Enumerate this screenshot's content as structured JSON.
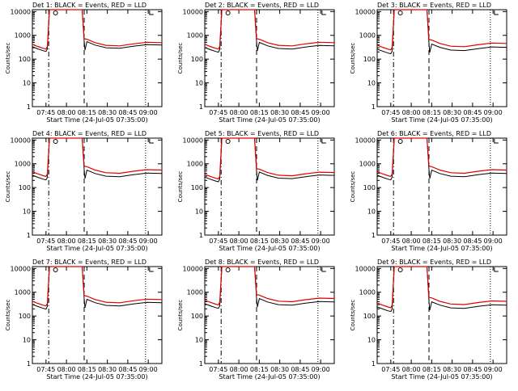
{
  "chart_data": [
    {
      "type": "line",
      "title": "Det 1: BLACK = Events, RED = LLD",
      "xlabel": "Start Time (24-Jul-05 07:35:00)",
      "ylabel": "Counts/sec",
      "x_ticks": [
        "07:45",
        "08:00",
        "08:15",
        "08:30",
        "08:45",
        "09:00"
      ],
      "y_ticks": [
        "1",
        "10",
        "100",
        "1000",
        "10000"
      ],
      "ylim": [
        1,
        12000
      ],
      "log_y": true,
      "series": [
        {
          "name": "Events",
          "color": "#000000"
        },
        {
          "name": "LLD",
          "color": "#e00000"
        }
      ],
      "events_peak": 12000,
      "events_min": 300,
      "lld_level": 380
    },
    {
      "type": "line",
      "title": "Det 2: BLACK = Events, RED = LLD",
      "xlabel": "Start Time (24-Jul-05 07:35:00)",
      "ylabel": "Counts/sec",
      "x_ticks": [
        "07:45",
        "08:00",
        "08:15",
        "08:30",
        "08:45",
        "09:00"
      ],
      "y_ticks": [
        "1",
        "10",
        "100",
        "1000",
        "10000"
      ],
      "ylim": [
        1,
        12000
      ],
      "log_y": true,
      "series": [
        {
          "name": "Events",
          "color": "#000000"
        },
        {
          "name": "LLD",
          "color": "#e00000"
        }
      ],
      "events_peak": 12000,
      "events_min": 280,
      "lld_level": 380
    },
    {
      "type": "line",
      "title": "Det 3: BLACK = Events, RED = LLD",
      "xlabel": "Start Time (24-Jul-05 07:35:00)",
      "ylabel": "Counts/sec",
      "x_ticks": [
        "07:45",
        "08:00",
        "08:15",
        "08:30",
        "08:45",
        "09:00"
      ],
      "y_ticks": [
        "1",
        "10",
        "100",
        "1000",
        "10000"
      ],
      "ylim": [
        1,
        12000
      ],
      "log_y": true,
      "series": [
        {
          "name": "Events",
          "color": "#000000"
        },
        {
          "name": "LLD",
          "color": "#e00000"
        }
      ],
      "events_peak": 12000,
      "events_min": 240,
      "lld_level": 350
    },
    {
      "type": "line",
      "title": "Det 4: BLACK = Events, RED = LLD",
      "xlabel": "Start Time (24-Jul-05 07:35:00)",
      "ylabel": "Counts/sec",
      "x_ticks": [
        "07:45",
        "08:00",
        "08:15",
        "08:30",
        "08:45",
        "09:00"
      ],
      "y_ticks": [
        "1",
        "10",
        "100",
        "1000",
        "10000"
      ],
      "ylim": [
        1,
        12000
      ],
      "log_y": true,
      "series": [
        {
          "name": "Events",
          "color": "#000000"
        },
        {
          "name": "LLD",
          "color": "#e00000"
        }
      ],
      "events_peak": 12000,
      "events_min": 300,
      "lld_level": 420
    },
    {
      "type": "line",
      "title": "Det 5: BLACK = Events, RED = LLD",
      "xlabel": "Start Time (24-Jul-05 07:35:00)",
      "ylabel": "Counts/sec",
      "x_ticks": [
        "07:45",
        "08:00",
        "08:15",
        "08:30",
        "08:45",
        "09:00"
      ],
      "y_ticks": [
        "1",
        "10",
        "100",
        "1000",
        "10000"
      ],
      "ylim": [
        1,
        12000
      ],
      "log_y": true,
      "series": [
        {
          "name": "Events",
          "color": "#000000"
        },
        {
          "name": "LLD",
          "color": "#e00000"
        }
      ],
      "events_peak": 12000,
      "events_min": 250,
      "lld_level": 330
    },
    {
      "type": "line",
      "title": "Det 6: BLACK = Events, RED = LLD",
      "xlabel": "Start Time (24-Jul-05 07:35:00)",
      "ylabel": "Counts/sec",
      "x_ticks": [
        "07:45",
        "08:00",
        "08:15",
        "08:30",
        "08:45",
        "09:00"
      ],
      "y_ticks": [
        "1",
        "10",
        "100",
        "1000",
        "10000"
      ],
      "ylim": [
        1,
        12000
      ],
      "log_y": true,
      "series": [
        {
          "name": "Events",
          "color": "#000000"
        },
        {
          "name": "LLD",
          "color": "#e00000"
        }
      ],
      "events_peak": 12000,
      "events_min": 300,
      "lld_level": 420
    },
    {
      "type": "line",
      "title": "Det 7: BLACK = Events, RED = LLD",
      "xlabel": "Start Time (24-Jul-05 07:35:00)",
      "ylabel": "Counts/sec",
      "x_ticks": [
        "07:45",
        "08:00",
        "08:15",
        "08:30",
        "08:45",
        "09:00"
      ],
      "y_ticks": [
        "1",
        "10",
        "100",
        "1000",
        "10000"
      ],
      "ylim": [
        1,
        12000
      ],
      "log_y": true,
      "series": [
        {
          "name": "Events",
          "color": "#000000"
        },
        {
          "name": "LLD",
          "color": "#e00000"
        }
      ],
      "events_peak": 12000,
      "events_min": 280,
      "lld_level": 380
    },
    {
      "type": "line",
      "title": "Det 8: BLACK = Events, RED = LLD",
      "xlabel": "Start Time (24-Jul-05 07:35:00)",
      "ylabel": "Counts/sec",
      "x_ticks": [
        "07:45",
        "08:00",
        "08:15",
        "08:30",
        "08:45",
        "09:00"
      ],
      "y_ticks": [
        "1",
        "10",
        "100",
        "1000",
        "10000"
      ],
      "ylim": [
        1,
        12000
      ],
      "log_y": true,
      "series": [
        {
          "name": "Events",
          "color": "#000000"
        },
        {
          "name": "LLD",
          "color": "#e00000"
        }
      ],
      "events_peak": 12000,
      "events_min": 300,
      "lld_level": 420
    },
    {
      "type": "line",
      "title": "Det 9: BLACK = Events, RED = LLD",
      "xlabel": "Start Time (24-Jul-05 07:35:00)",
      "ylabel": "Counts/sec",
      "x_ticks": [
        "07:45",
        "08:00",
        "08:15",
        "08:30",
        "08:45",
        "09:00"
      ],
      "y_ticks": [
        "1",
        "10",
        "100",
        "1000",
        "10000"
      ],
      "ylim": [
        1,
        12000
      ],
      "log_y": true,
      "series": [
        {
          "name": "Events",
          "color": "#000000"
        },
        {
          "name": "LLD",
          "color": "#e00000"
        }
      ],
      "events_peak": 12000,
      "events_min": 220,
      "lld_level": 320
    }
  ]
}
